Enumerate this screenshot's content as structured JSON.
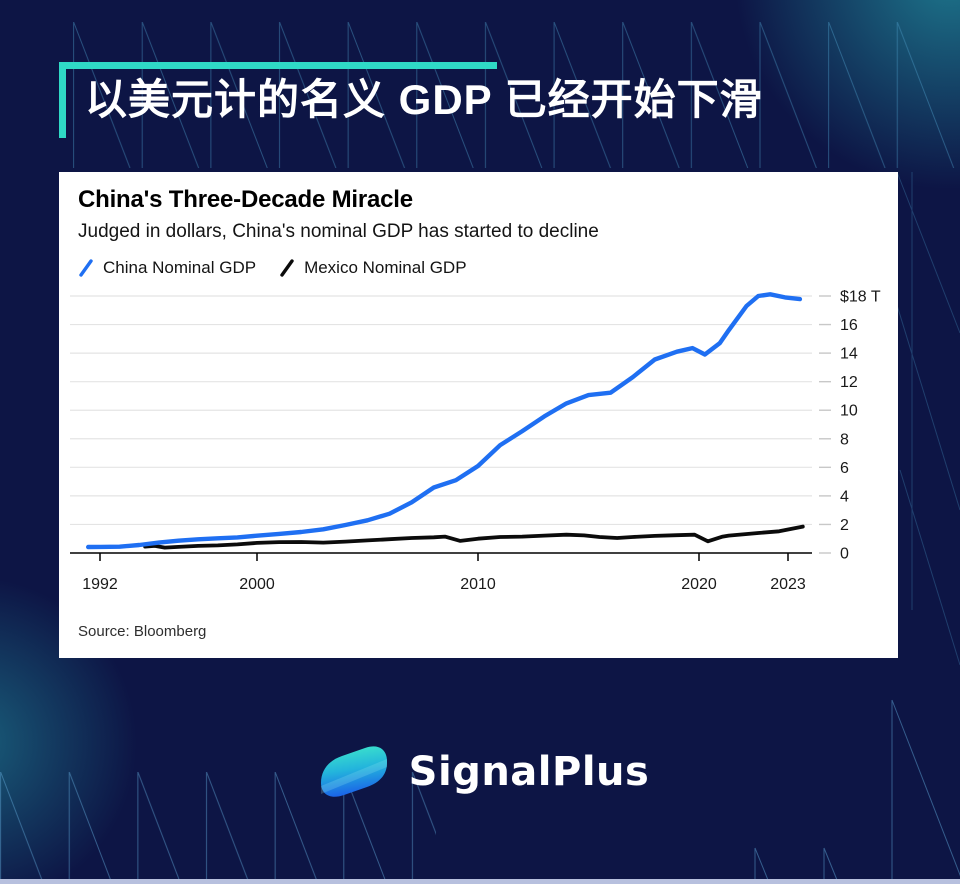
{
  "page": {
    "header_title": "以美元计的名义 GDP 已经开始下滑",
    "brand_name": "SignalPlus",
    "accent_color": "#2fd9c6",
    "background_color": "#0d1545",
    "bottom_bar_color": "#b7c0de"
  },
  "chart_data": {
    "type": "line",
    "title": "China's Three-Decade Miracle",
    "subtitle": "Judged in dollars, China's nominal GDP has started to decline",
    "source": "Source: Bloomberg",
    "unit": "trillion USD",
    "grid": "horizontal",
    "legend_position": "top-left",
    "ylim": [
      0,
      18
    ],
    "x_ticks": [
      1992,
      2000,
      2010,
      2020,
      2023
    ],
    "y_ticks": [
      {
        "value": 18,
        "label": "$18 T"
      },
      {
        "value": 16,
        "label": "16"
      },
      {
        "value": 14,
        "label": "14"
      },
      {
        "value": 12,
        "label": "12"
      },
      {
        "value": 10,
        "label": "10"
      },
      {
        "value": 8,
        "label": "8"
      },
      {
        "value": 6,
        "label": "6"
      },
      {
        "value": 4,
        "label": "4"
      },
      {
        "value": 2,
        "label": "2"
      },
      {
        "value": 0,
        "label": "0"
      }
    ],
    "series": [
      {
        "name": "China Nominal GDP",
        "color": "#1f6ff2",
        "width": 4.4,
        "x": [
          1991.4,
          1992,
          1993,
          1994,
          1995,
          1996,
          1997,
          1998,
          1999,
          2000,
          2001,
          2002,
          2003,
          2004,
          2005,
          2006,
          2007,
          2008,
          2009,
          2010,
          2011,
          2012,
          2013,
          2014,
          2015,
          2016,
          2017,
          2018,
          2019,
          2019.7,
          2020.2,
          2020.7,
          2021,
          2021.6,
          2022,
          2022.4,
          2022.9,
          2023.4
        ],
        "values": [
          0.42,
          0.43,
          0.44,
          0.56,
          0.73,
          0.86,
          0.96,
          1.03,
          1.09,
          1.21,
          1.34,
          1.47,
          1.66,
          1.96,
          2.29,
          2.75,
          3.55,
          4.59,
          5.1,
          6.09,
          7.55,
          8.53,
          9.57,
          10.48,
          11.06,
          11.23,
          12.31,
          13.55,
          14.1,
          14.35,
          13.9,
          14.7,
          15.6,
          17.3,
          18.0,
          18.12,
          17.9,
          17.78
        ]
      },
      {
        "name": "Mexico Nominal GDP",
        "color": "#0b0b0b",
        "width": 3.8,
        "x": [
          1994.3,
          1994.8,
          1995.3,
          1996,
          1997,
          1998,
          1999,
          2000,
          2001,
          2002,
          2003,
          2004,
          2005,
          2006,
          2007,
          2008,
          2008.5,
          2009.2,
          2010,
          2011,
          2012,
          2013,
          2014,
          2014.8,
          2015.5,
          2016.3,
          2017,
          2018,
          2019,
          2019.8,
          2020.3,
          2020.8,
          2021,
          2022,
          2022.7,
          2023.5
        ],
        "values": [
          0.45,
          0.5,
          0.38,
          0.43,
          0.5,
          0.53,
          0.6,
          0.71,
          0.76,
          0.77,
          0.73,
          0.8,
          0.88,
          0.97,
          1.05,
          1.1,
          1.15,
          0.85,
          1.0,
          1.12,
          1.15,
          1.22,
          1.28,
          1.23,
          1.12,
          1.05,
          1.12,
          1.2,
          1.25,
          1.28,
          0.82,
          1.15,
          1.22,
          1.4,
          1.52,
          1.85
        ]
      }
    ]
  }
}
